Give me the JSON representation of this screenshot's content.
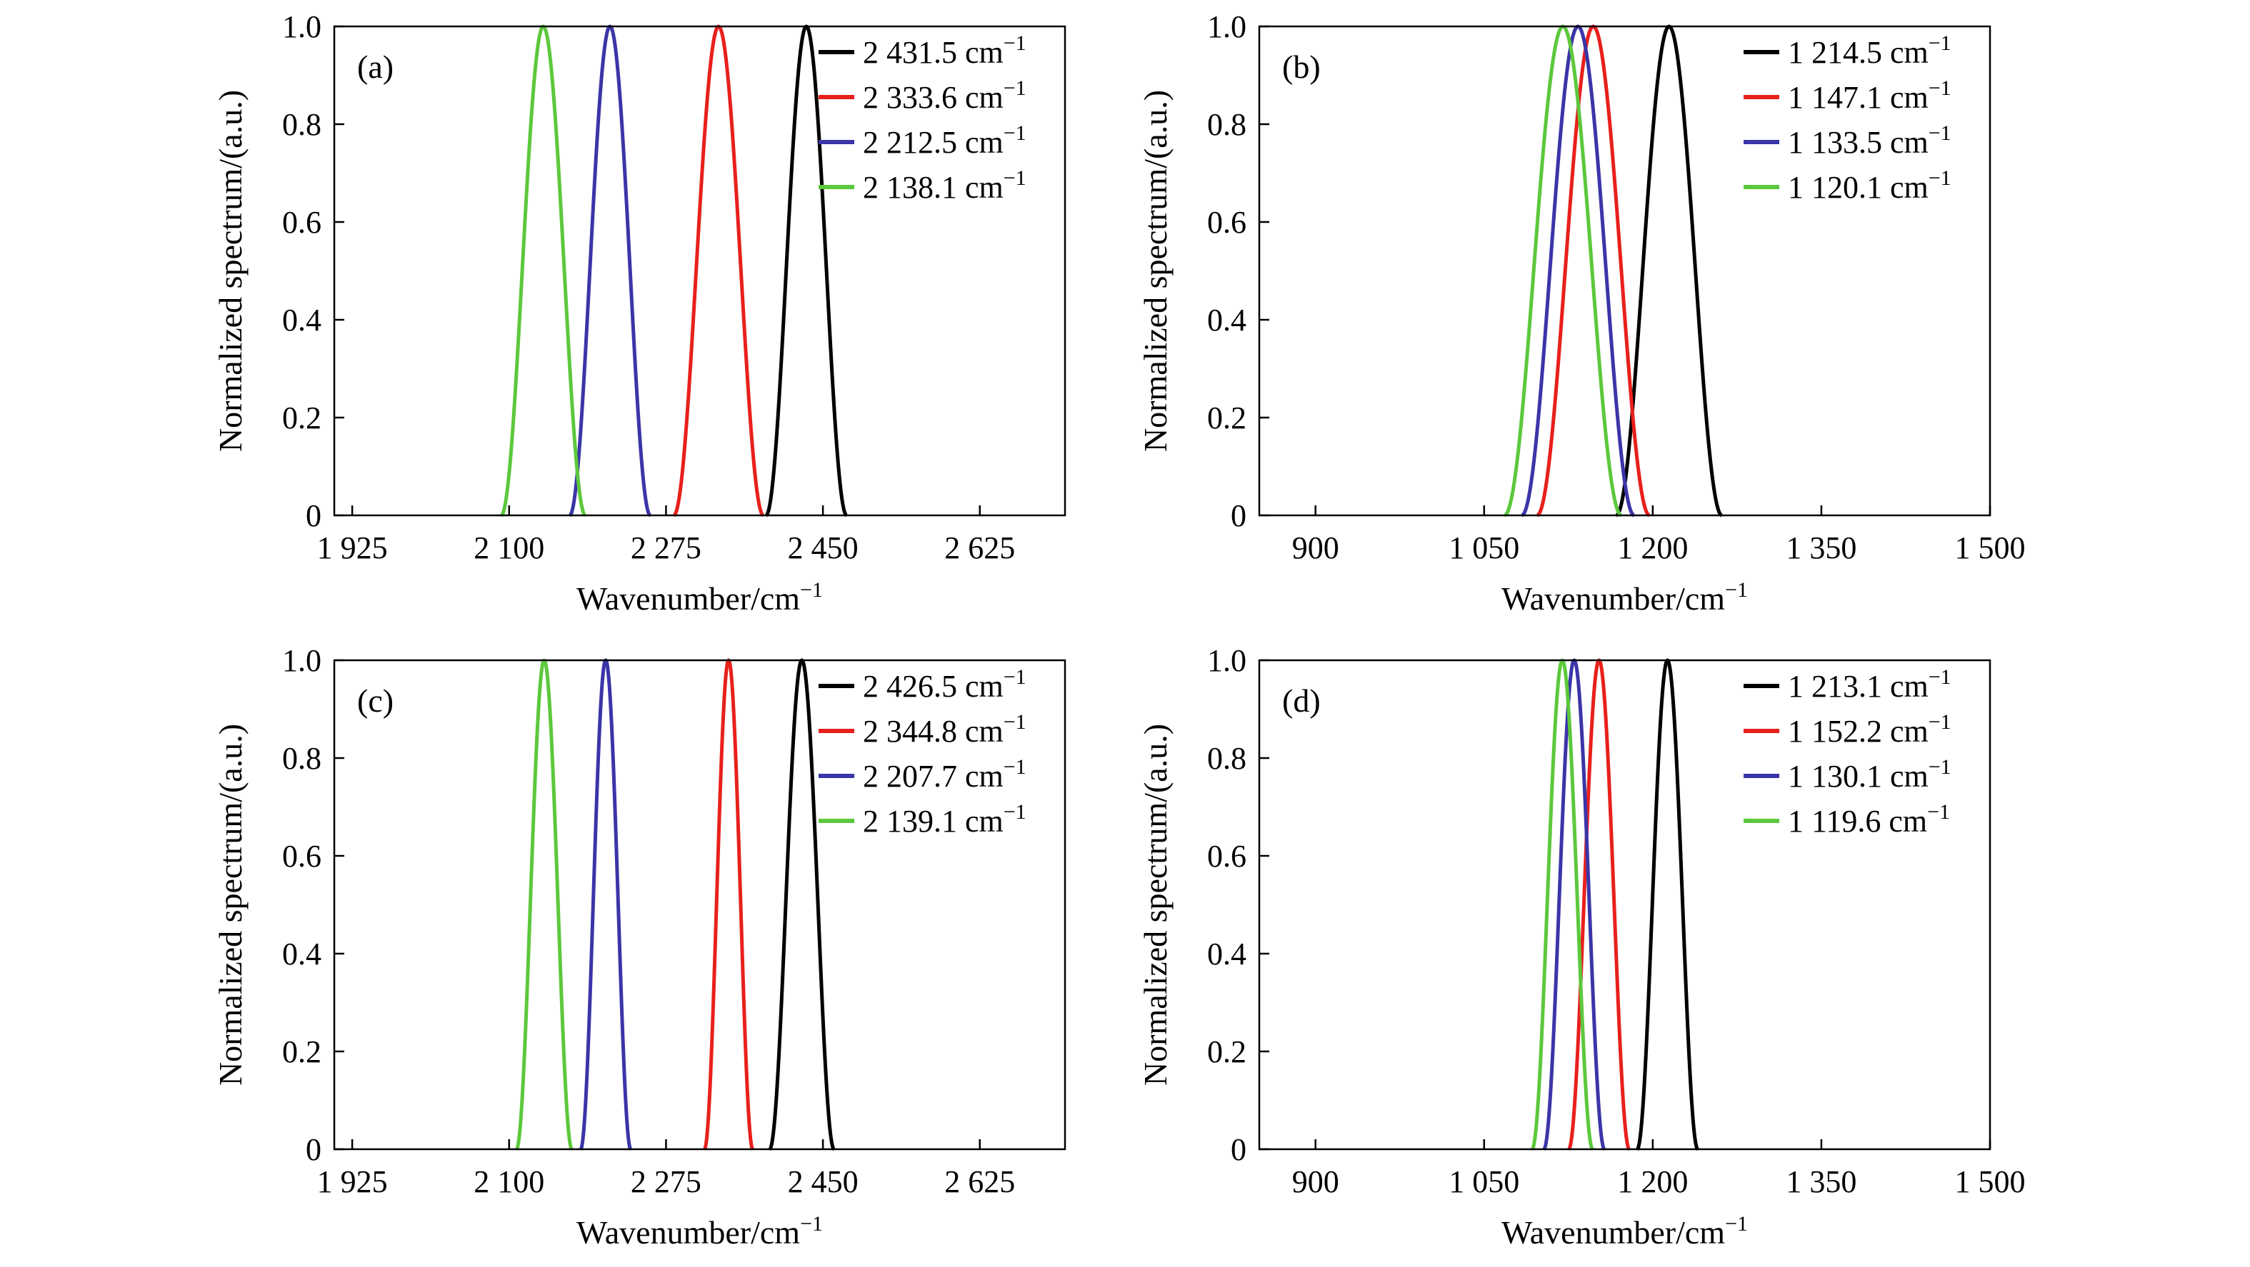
{
  "colors": {
    "black": "#000000",
    "red": "#e8201c",
    "blue": "#3a35a8",
    "green": "#5cc83c"
  },
  "chart_data": [
    {
      "id": "a",
      "type": "line",
      "panel_label": "(a)",
      "xlabel": "Wavenumber/cm",
      "xlabel_sup": "−1",
      "ylabel": "Normalized spectrum/(a.u.)",
      "xlim": [
        1905,
        2720
      ],
      "ylim": [
        0,
        1.0
      ],
      "xticks": [
        1925,
        2100,
        2275,
        2450,
        2625
      ],
      "xtick_labels": [
        "1 925",
        "2 100",
        "2 275",
        "2 450",
        "2 625"
      ],
      "yticks": [
        0,
        0.2,
        0.4,
        0.6,
        0.8,
        1.0
      ],
      "ytick_labels": [
        "0",
        "0.2",
        "0.4",
        "0.6",
        "0.8",
        "1.0"
      ],
      "legend_position": "top-right",
      "series": [
        {
          "name": "2 431.5 cm",
          "unit_sup": "−1",
          "color": "#000000",
          "center": 2431.5,
          "halfwidth": 45
        },
        {
          "name": "2 333.6 cm",
          "unit_sup": "−1",
          "color": "#e8201c",
          "center": 2333.6,
          "halfwidth": 50
        },
        {
          "name": "2 212.5 cm",
          "unit_sup": "−1",
          "color": "#3a35a8",
          "center": 2212.5,
          "halfwidth": 45
        },
        {
          "name": "2 138.1 cm",
          "unit_sup": "−1",
          "color": "#5cc83c",
          "center": 2138.1,
          "halfwidth": 47
        }
      ]
    },
    {
      "id": "b",
      "type": "line",
      "panel_label": "(b)",
      "xlabel": "Wavenumber/cm",
      "xlabel_sup": "−1",
      "ylabel": "Normalized spectrum/(a.u.)",
      "xlim": [
        850,
        1500
      ],
      "ylim": [
        0,
        1.0
      ],
      "xticks": [
        900,
        1050,
        1200,
        1350,
        1500
      ],
      "xtick_labels": [
        "900",
        "1 050",
        "1 200",
        "1 350",
        "1 500"
      ],
      "yticks": [
        0,
        0.2,
        0.4,
        0.6,
        0.8,
        1.0
      ],
      "ytick_labels": [
        "0",
        "0.2",
        "0.4",
        "0.6",
        "0.8",
        "1.0"
      ],
      "legend_position": "top-right",
      "series": [
        {
          "name": "1 214.5 cm",
          "unit_sup": "−1",
          "color": "#000000",
          "center": 1214.5,
          "halfwidth": 47
        },
        {
          "name": "1 147.1 cm",
          "unit_sup": "−1",
          "color": "#e8201c",
          "center": 1147.1,
          "halfwidth": 50
        },
        {
          "name": "1 133.5 cm",
          "unit_sup": "−1",
          "color": "#3a35a8",
          "center": 1133.5,
          "halfwidth": 50
        },
        {
          "name": "1 120.1 cm",
          "unit_sup": "−1",
          "color": "#5cc83c",
          "center": 1120.1,
          "halfwidth": 52
        }
      ]
    },
    {
      "id": "c",
      "type": "line",
      "panel_label": "(c)",
      "xlabel": "Wavenumber/cm",
      "xlabel_sup": "−1",
      "ylabel": "Normalized spectrum/(a.u.)",
      "xlim": [
        1905,
        2720
      ],
      "ylim": [
        0,
        1.0
      ],
      "xticks": [
        1925,
        2100,
        2275,
        2450,
        2625
      ],
      "xtick_labels": [
        "1 925",
        "2 100",
        "2 275",
        "2 450",
        "2 625"
      ],
      "yticks": [
        0,
        0.2,
        0.4,
        0.6,
        0.8,
        1.0
      ],
      "ytick_labels": [
        "0",
        "0.2",
        "0.4",
        "0.6",
        "0.8",
        "1.0"
      ],
      "legend_position": "top-right",
      "series": [
        {
          "name": "2 426.5 cm",
          "unit_sup": "−1",
          "color": "#000000",
          "center": 2426.5,
          "halfwidth": 36
        },
        {
          "name": "2 344.8 cm",
          "unit_sup": "−1",
          "color": "#e8201c",
          "center": 2344.8,
          "halfwidth": 27
        },
        {
          "name": "2 207.7 cm",
          "unit_sup": "−1",
          "color": "#3a35a8",
          "center": 2207.7,
          "halfwidth": 28
        },
        {
          "name": "2 139.1 cm",
          "unit_sup": "−1",
          "color": "#5cc83c",
          "center": 2139.1,
          "halfwidth": 31
        }
      ]
    },
    {
      "id": "d",
      "type": "line",
      "panel_label": "(d)",
      "xlabel": "Wavenumber/cm",
      "xlabel_sup": "−1",
      "ylabel": "Normalized spectrum/(a.u.)",
      "xlim": [
        850,
        1500
      ],
      "ylim": [
        0,
        1.0
      ],
      "xticks": [
        900,
        1050,
        1200,
        1350,
        1500
      ],
      "xtick_labels": [
        "900",
        "1 050",
        "1 200",
        "1 350",
        "1 500"
      ],
      "yticks": [
        0,
        0.2,
        0.4,
        0.6,
        0.8,
        1.0
      ],
      "ytick_labels": [
        "0",
        "0.2",
        "0.4",
        "0.6",
        "0.8",
        "1.0"
      ],
      "legend_position": "top-right",
      "series": [
        {
          "name": "1 213.1 cm",
          "unit_sup": "−1",
          "color": "#000000",
          "center": 1213.1,
          "halfwidth": 27
        },
        {
          "name": "1 152.2 cm",
          "unit_sup": "−1",
          "color": "#e8201c",
          "center": 1152.2,
          "halfwidth": 27
        },
        {
          "name": "1 130.1 cm",
          "unit_sup": "−1",
          "color": "#3a35a8",
          "center": 1130.1,
          "halfwidth": 27
        },
        {
          "name": "1 119.6 cm",
          "unit_sup": "−1",
          "color": "#5cc83c",
          "center": 1119.6,
          "halfwidth": 27
        }
      ]
    }
  ]
}
